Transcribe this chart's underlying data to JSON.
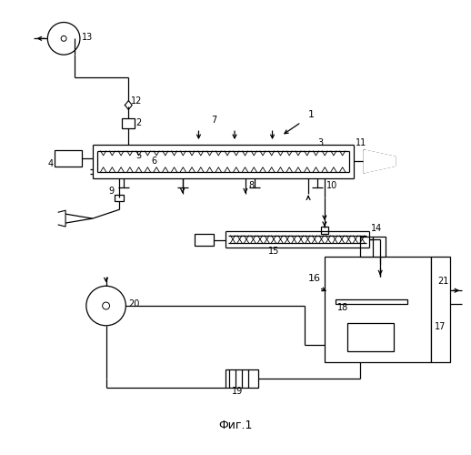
{
  "bg_color": "#ffffff",
  "line_color": "#000000",
  "title": "Фиг.1",
  "fig_width": 5.18,
  "fig_height": 5.0,
  "dpi": 100
}
